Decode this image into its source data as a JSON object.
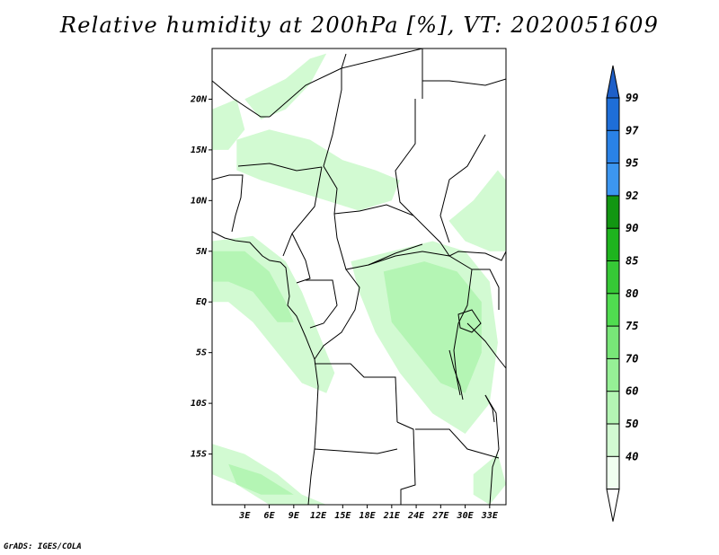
{
  "title": "Relative humidity at 200hPa [%], VT: 2020051609",
  "credit": "GrADS: IGES/COLA",
  "map": {
    "lon_range": [
      -1,
      35
    ],
    "lat_range": [
      -20,
      25
    ],
    "lat_ticks": [
      {
        "value": 20,
        "label": "20N"
      },
      {
        "value": 15,
        "label": "15N"
      },
      {
        "value": 10,
        "label": "10N"
      },
      {
        "value": 5,
        "label": "5N"
      },
      {
        "value": 0,
        "label": "EQ"
      },
      {
        "value": -5,
        "label": "5S"
      },
      {
        "value": -10,
        "label": "10S"
      },
      {
        "value": -15,
        "label": "15S"
      }
    ],
    "lon_ticks": [
      {
        "value": 3,
        "label": "3E"
      },
      {
        "value": 6,
        "label": "6E"
      },
      {
        "value": 9,
        "label": "9E"
      },
      {
        "value": 12,
        "label": "12E"
      },
      {
        "value": 15,
        "label": "15E"
      },
      {
        "value": 18,
        "label": "18E"
      },
      {
        "value": 21,
        "label": "21E"
      },
      {
        "value": 24,
        "label": "24E"
      },
      {
        "value": 27,
        "label": "27E"
      },
      {
        "value": 30,
        "label": "30E"
      },
      {
        "value": 33,
        "label": "33E"
      }
    ]
  },
  "colorbar": {
    "levels": [
      {
        "label": "99",
        "color": "#1e6ed8"
      },
      {
        "label": "97",
        "color": "#2a82e6"
      },
      {
        "label": "95",
        "color": "#3c96f0"
      },
      {
        "label": "92",
        "color": "#129612"
      },
      {
        "label": "90",
        "color": "#1eb41e"
      },
      {
        "label": "85",
        "color": "#36c836"
      },
      {
        "label": "80",
        "color": "#50dc50"
      },
      {
        "label": "75",
        "color": "#78e678"
      },
      {
        "label": "70",
        "color": "#96f096"
      },
      {
        "label": "60",
        "color": "#b4f5b4"
      },
      {
        "label": "50",
        "color": "#d2fad2"
      },
      {
        "label": "40",
        "color": "#f0fff0"
      }
    ],
    "top_arrow_color": "#1e5fc8",
    "bottom_arrow_color": "#ffffff"
  },
  "fields": [
    {
      "name": "gulf-of-guinea-moist-band",
      "level": "50",
      "color": "#d2fad2",
      "points": [
        [
          -1,
          6
        ],
        [
          4,
          6.5
        ],
        [
          8,
          4
        ],
        [
          10,
          1
        ],
        [
          12,
          -3
        ],
        [
          14,
          -7
        ],
        [
          13,
          -9
        ],
        [
          10,
          -8
        ],
        [
          7,
          -5
        ],
        [
          4,
          -2
        ],
        [
          1,
          0
        ],
        [
          -1,
          0
        ]
      ]
    },
    {
      "name": "west-coast-core",
      "level": "60",
      "color": "#b4f5b4",
      "points": [
        [
          -1,
          5
        ],
        [
          3,
          5
        ],
        [
          6,
          3
        ],
        [
          8,
          0
        ],
        [
          9,
          -2
        ],
        [
          7,
          -2
        ],
        [
          4,
          1
        ],
        [
          1,
          2
        ],
        [
          -1,
          2
        ]
      ]
    },
    {
      "name": "central-africa-plume",
      "level": "50",
      "color": "#d2fad2",
      "points": [
        [
          16,
          4
        ],
        [
          21,
          5
        ],
        [
          26,
          6
        ],
        [
          30,
          5
        ],
        [
          33,
          2
        ],
        [
          34,
          -4
        ],
        [
          33,
          -10
        ],
        [
          30,
          -13
        ],
        [
          26,
          -11
        ],
        [
          22,
          -7
        ],
        [
          19,
          -3
        ],
        [
          17,
          1
        ]
      ]
    },
    {
      "name": "central-africa-core",
      "level": "60",
      "color": "#b4f5b4",
      "points": [
        [
          20,
          3
        ],
        [
          25,
          4
        ],
        [
          29,
          3
        ],
        [
          32,
          0
        ],
        [
          32,
          -5
        ],
        [
          30,
          -9
        ],
        [
          27,
          -8
        ],
        [
          24,
          -5
        ],
        [
          21,
          -2
        ]
      ]
    },
    {
      "name": "east-plateau-band",
      "level": "50",
      "color": "#d2fad2",
      "points": [
        [
          28,
          8
        ],
        [
          31,
          10
        ],
        [
          34,
          13
        ],
        [
          35,
          12
        ],
        [
          35,
          5
        ],
        [
          33,
          5
        ],
        [
          30,
          6
        ]
      ]
    },
    {
      "name": "sahel-band",
      "level": "50",
      "color": "#d2fad2",
      "points": [
        [
          2,
          16
        ],
        [
          6,
          17
        ],
        [
          11,
          16
        ],
        [
          15,
          14
        ],
        [
          19,
          13
        ],
        [
          22,
          12
        ],
        [
          21,
          10
        ],
        [
          17,
          9
        ],
        [
          13,
          10
        ],
        [
          9,
          11
        ],
        [
          5,
          12
        ],
        [
          2,
          13
        ]
      ]
    },
    {
      "name": "sahara-streak",
      "level": "50",
      "color": "#d2fad2",
      "points": [
        [
          3,
          20
        ],
        [
          8,
          22
        ],
        [
          11,
          24
        ],
        [
          13,
          24.5
        ],
        [
          11,
          21.5
        ],
        [
          8,
          19
        ],
        [
          5,
          18
        ]
      ]
    },
    {
      "name": "west-sahara-patch",
      "level": "50",
      "color": "#d2fad2",
      "points": [
        [
          -1,
          19
        ],
        [
          2,
          20
        ],
        [
          3,
          17
        ],
        [
          1,
          15
        ],
        [
          -1,
          15
        ]
      ]
    },
    {
      "name": "southwest-ocean-band",
      "level": "50",
      "color": "#d2fad2",
      "points": [
        [
          -1,
          -14
        ],
        [
          3,
          -15
        ],
        [
          7,
          -17
        ],
        [
          10,
          -19
        ],
        [
          13,
          -20
        ],
        [
          6,
          -20
        ],
        [
          2,
          -18
        ],
        [
          -1,
          -17
        ]
      ]
    },
    {
      "name": "southwest-ocean-core",
      "level": "60",
      "color": "#b4f5b4",
      "points": [
        [
          1,
          -16
        ],
        [
          5,
          -17
        ],
        [
          9,
          -19
        ],
        [
          5,
          -19
        ],
        [
          2,
          -18
        ]
      ]
    },
    {
      "name": "southeast-patch",
      "level": "50",
      "color": "#d2fad2",
      "points": [
        [
          31,
          -17
        ],
        [
          34,
          -15
        ],
        [
          35,
          -18
        ],
        [
          33,
          -20
        ],
        [
          31,
          -19
        ]
      ]
    }
  ]
}
